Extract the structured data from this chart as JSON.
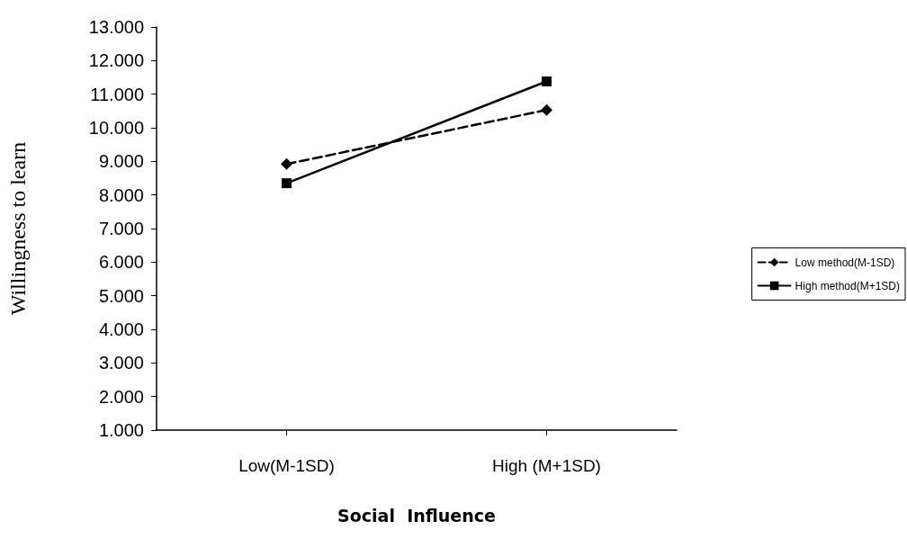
{
  "chart_data": {
    "type": "line",
    "xlabel": "Social  Influence",
    "ylabel": "Willingness to learn",
    "categories": [
      "Low(M-1SD)",
      "High (M+1SD)"
    ],
    "series": [
      {
        "name": "Low method(M-1SD)",
        "color": "#000000",
        "values": [
          8.92,
          10.53
        ],
        "marker": "diamond",
        "line_style": "dashed"
      },
      {
        "name": "High method(M+1SD)",
        "color": "#000000",
        "values": [
          8.35,
          11.38
        ],
        "marker": "square",
        "line_style": "solid"
      }
    ],
    "ylim": [
      1,
      13
    ],
    "yticks": [
      {
        "value": 1,
        "label": "1.000"
      },
      {
        "value": 2,
        "label": "2.000"
      },
      {
        "value": 3,
        "label": "3.000"
      },
      {
        "value": 4,
        "label": "4.000"
      },
      {
        "value": 5,
        "label": "5.000"
      },
      {
        "value": 6,
        "label": "6.000"
      },
      {
        "value": 7,
        "label": "7.000"
      },
      {
        "value": 8,
        "label": "8.000"
      },
      {
        "value": 9,
        "label": "9.000"
      },
      {
        "value": 10,
        "label": "10.000"
      },
      {
        "value": 11,
        "label": "11.000"
      },
      {
        "value": 12,
        "label": "12.000"
      },
      {
        "value": 13,
        "label": "13.000"
      }
    ],
    "grid": false,
    "legend": "right"
  }
}
